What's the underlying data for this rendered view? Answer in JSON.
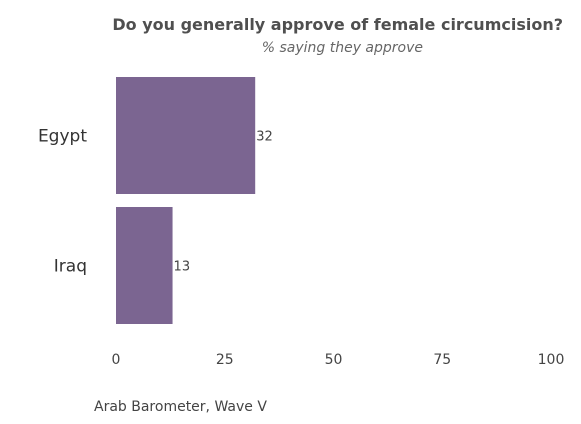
{
  "chart_data": {
    "type": "bar",
    "orientation": "horizontal",
    "title": "Do you generally approve of female circumcision?",
    "subtitle": "% saying they approve",
    "categories": [
      "Egypt",
      "Iraq"
    ],
    "values": [
      32,
      13
    ],
    "data_labels": [
      "32",
      "13"
    ],
    "xlim": [
      0,
      100
    ],
    "xticks": [
      0,
      25,
      50,
      75,
      100
    ],
    "grid": false,
    "bar_color": "#7b6591",
    "source": "Arab Barometer, Wave V"
  }
}
